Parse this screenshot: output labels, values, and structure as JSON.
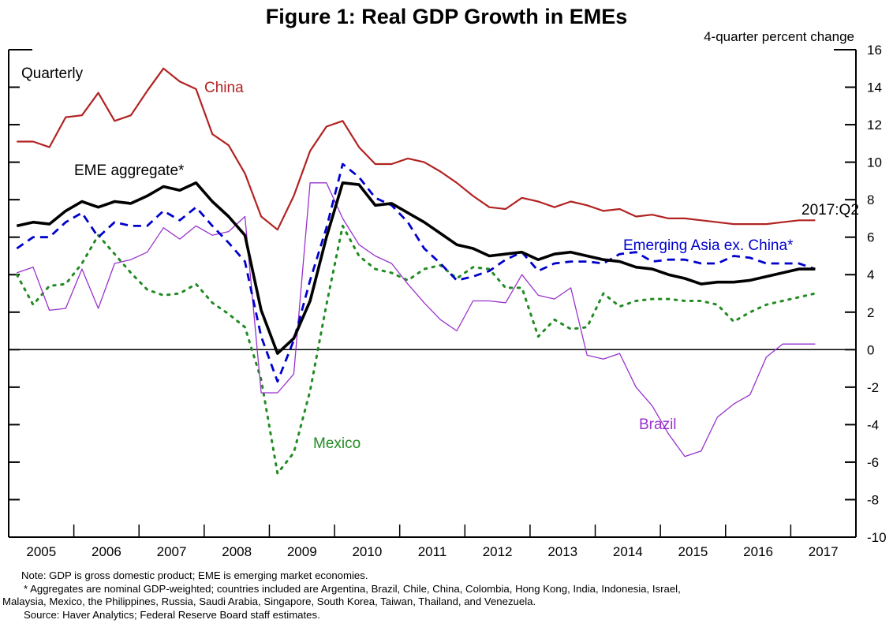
{
  "title": "Figure 1:  Real GDP Growth in EMEs",
  "units_label": "4-quarter percent change",
  "notes": [
    "Note: GDP is gross domestic product; EME is emerging market economies.",
    "* Aggregates are nominal GDP-weighted; countries included are Argentina, Brazil, Chile, China, Colombia, Hong Kong, India, Indonesia, Israel,",
    "Malaysia, Mexico, the Philippines, Russia, Saudi Arabia, Singapore, South Korea, Taiwan, Thailand, and Venezuela.",
    "Source: Haver Analytics; Federal Reserve Board staff estimates."
  ],
  "chart_data": {
    "type": "line",
    "title": "Figure 1:  Real GDP Growth in EMEs",
    "xlabel": "",
    "ylabel": "4-quarter percent change",
    "frequency_label": "Quarterly",
    "end_label": "2017:Q2",
    "x_start": "2005:Q1",
    "x_end": "2017:Q2",
    "years": [
      "2005",
      "2006",
      "2007",
      "2008",
      "2009",
      "2010",
      "2011",
      "2012",
      "2013",
      "2014",
      "2015",
      "2016",
      "2017"
    ],
    "ylim": [
      -10,
      16
    ],
    "yticks": [
      16,
      14,
      12,
      10,
      8,
      6,
      4,
      2,
      0,
      -2,
      -4,
      -6,
      -8,
      -10
    ],
    "y_axis_side": "right",
    "zero_line": true,
    "grid": false,
    "legend": "inline labels",
    "series": [
      {
        "name": "China",
        "color": "#b22222",
        "style": "solid",
        "values": [
          11.1,
          11.1,
          10.8,
          12.4,
          12.5,
          13.7,
          12.2,
          12.5,
          13.8,
          15.0,
          14.3,
          13.9,
          11.5,
          10.9,
          9.4,
          7.1,
          6.4,
          8.2,
          10.6,
          11.9,
          12.2,
          10.8,
          9.9,
          9.9,
          10.2,
          10.0,
          9.5,
          8.9,
          8.2,
          7.6,
          7.5,
          8.1,
          7.9,
          7.6,
          7.9,
          7.7,
          7.4,
          7.5,
          7.1,
          7.2,
          7.0,
          7.0,
          6.9,
          6.8,
          6.7,
          6.7,
          6.7,
          6.8,
          6.9,
          6.9
        ]
      },
      {
        "name": "EME aggregate*",
        "color": "#000000",
        "style": "solid-thick",
        "values": [
          6.6,
          6.8,
          6.7,
          7.4,
          7.9,
          7.6,
          7.9,
          7.8,
          8.2,
          8.7,
          8.5,
          8.9,
          7.9,
          7.1,
          6.1,
          2.1,
          -0.2,
          0.6,
          2.6,
          6.0,
          8.9,
          8.8,
          7.7,
          7.8,
          7.3,
          6.8,
          6.2,
          5.6,
          5.4,
          5.0,
          5.1,
          5.2,
          4.8,
          5.1,
          5.2,
          5.0,
          4.8,
          4.7,
          4.4,
          4.3,
          4.0,
          3.8,
          3.5,
          3.6,
          3.6,
          3.7,
          3.9,
          4.1,
          4.3,
          4.3
        ]
      },
      {
        "name": "Emerging Asia ex. China*",
        "color": "#0000cc",
        "style": "dashed",
        "values": [
          5.4,
          6.0,
          6.0,
          6.8,
          7.3,
          6.0,
          6.8,
          6.6,
          6.6,
          7.4,
          6.9,
          7.6,
          6.6,
          5.7,
          4.7,
          0.7,
          -1.7,
          0.5,
          3.7,
          6.5,
          9.9,
          9.2,
          8.1,
          7.7,
          6.8,
          5.4,
          4.6,
          3.7,
          3.9,
          4.2,
          4.8,
          5.2,
          4.2,
          4.6,
          4.7,
          4.7,
          4.6,
          5.1,
          5.2,
          4.7,
          4.8,
          4.8,
          4.6,
          4.6,
          5.0,
          4.9,
          4.6,
          4.6,
          4.6,
          4.3
        ]
      },
      {
        "name": "Mexico",
        "color": "#228b22",
        "style": "dotted",
        "values": [
          4.0,
          2.4,
          3.4,
          3.5,
          4.6,
          6.1,
          5.1,
          4.1,
          3.2,
          2.9,
          3.0,
          3.5,
          2.5,
          1.9,
          1.2,
          -1.6,
          -6.6,
          -5.5,
          -2.2,
          2.4,
          6.6,
          5.0,
          4.3,
          4.1,
          3.7,
          4.3,
          4.5,
          3.8,
          4.4,
          4.3,
          3.3,
          3.3,
          0.7,
          1.6,
          1.1,
          1.2,
          3.0,
          2.3,
          2.6,
          2.7,
          2.7,
          2.6,
          2.6,
          2.4,
          1.5,
          2.0,
          2.4,
          2.6,
          2.8,
          3.0
        ]
      },
      {
        "name": "Brazil",
        "color": "#9932cc",
        "style": "solid-thin",
        "values": [
          4.1,
          4.4,
          2.1,
          2.2,
          4.3,
          2.2,
          4.6,
          4.8,
          5.2,
          6.5,
          5.9,
          6.6,
          6.1,
          6.3,
          7.1,
          -2.3,
          -2.3,
          -1.3,
          8.9,
          8.9,
          7.0,
          5.6,
          5.0,
          4.6,
          3.5,
          2.5,
          1.6,
          1.0,
          2.6,
          2.6,
          2.5,
          4.0,
          2.9,
          2.7,
          3.3,
          -0.3,
          -0.5,
          -0.2,
          -2.0,
          -3.0,
          -4.5,
          -5.7,
          -5.4,
          -3.6,
          -2.9,
          -2.4,
          -0.4,
          0.3,
          0.3,
          0.3
        ]
      }
    ],
    "annotations": [
      {
        "text": "Quarterly",
        "color": "#000000"
      },
      {
        "text": "China",
        "color": "#b22222"
      },
      {
        "text": "EME aggregate*",
        "color": "#000000"
      },
      {
        "text": "2017:Q2",
        "color": "#000000"
      },
      {
        "text": "Emerging Asia ex. China*",
        "color": "#0000cc"
      },
      {
        "text": "Mexico",
        "color": "#228b22"
      },
      {
        "text": "Brazil",
        "color": "#9932cc"
      }
    ]
  }
}
